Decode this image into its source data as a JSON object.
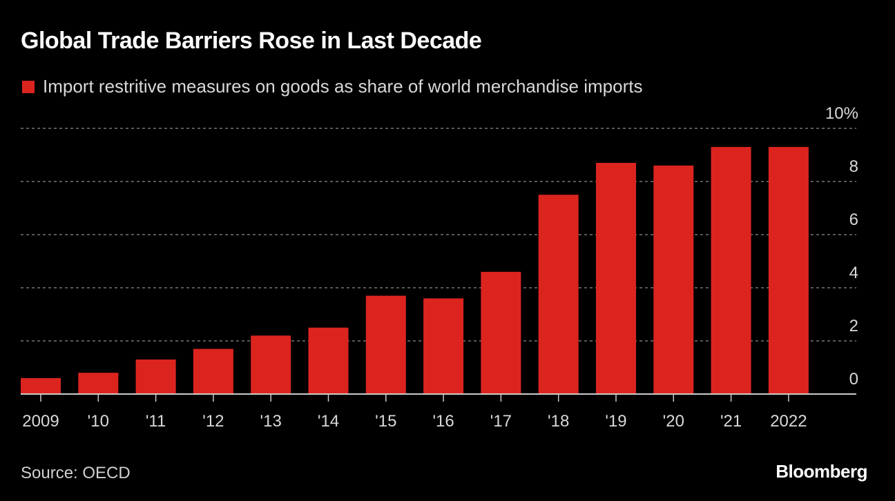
{
  "header": {
    "title": "Global Trade Barriers Rose in Last Decade",
    "legend_label": "Import restritive measures on goods as share of world merchandise imports",
    "legend_color": "#dc241f"
  },
  "footer": {
    "source": "Source: OECD",
    "brand": "Bloomberg"
  },
  "chart_data": {
    "type": "bar",
    "title": "Global Trade Barriers Rose in Last Decade",
    "xlabel": "",
    "ylabel": "",
    "categories": [
      "2009",
      "'10",
      "'11",
      "'12",
      "'13",
      "'14",
      "'15",
      "'16",
      "'17",
      "'18",
      "'19",
      "'20",
      "'21",
      "2022"
    ],
    "series": [
      {
        "name": "Import restritive measures on goods as share of world merchandise imports",
        "color": "#dc241f",
        "values": [
          0.6,
          0.8,
          1.3,
          1.7,
          2.2,
          2.5,
          3.7,
          3.6,
          4.6,
          7.5,
          8.7,
          8.6,
          9.3,
          9.3
        ]
      }
    ],
    "ylim": [
      0,
      10
    ],
    "yticks": [
      0,
      2,
      4,
      6,
      8,
      10
    ],
    "ytick_labels": [
      "0",
      "2",
      "4",
      "6",
      "8",
      "10%"
    ],
    "y_axis_position": "right",
    "grid": true,
    "legend_position": "top-left",
    "colors": {
      "bar": "#dc241f",
      "grid": "#777777",
      "axis": "#cccccc",
      "text": "#d9d9d9"
    }
  }
}
